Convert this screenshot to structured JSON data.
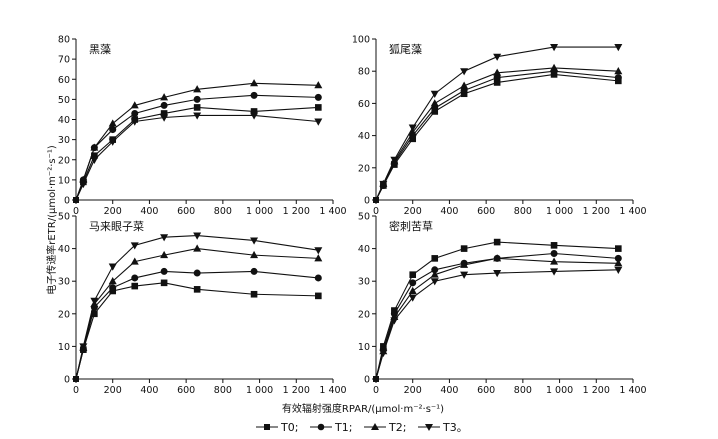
{
  "figure": {
    "y_axis_label": "电子传递率rETR/(μmol·m⁻²·s⁻¹)",
    "x_axis_label": "有效辐射强度RPAR/(μmol·m⁻²·s⁻¹)"
  },
  "legend": [
    {
      "label": "T0;",
      "marker": "square"
    },
    {
      "label": "T1;",
      "marker": "circle"
    },
    {
      "label": "T2;",
      "marker": "triangle-up"
    },
    {
      "label": "T3。",
      "marker": "triangle-down"
    }
  ],
  "chart_data": [
    {
      "type": "line",
      "title": "黑藻",
      "x": [
        0,
        40,
        100,
        200,
        320,
        480,
        660,
        970,
        1320
      ],
      "xlim": [
        0,
        1400
      ],
      "xticks": [
        "0",
        "200",
        "400",
        "600",
        "800",
        "1 000",
        "1 200",
        "1 400"
      ],
      "ylim": [
        0,
        80
      ],
      "yticks": [
        "0",
        "10",
        "20",
        "30",
        "40",
        "50",
        "60",
        "70",
        "80"
      ],
      "series": [
        {
          "name": "T0",
          "values": [
            0,
            9,
            22,
            30,
            40,
            43,
            46,
            44,
            46
          ]
        },
        {
          "name": "T1",
          "values": [
            0,
            10,
            26,
            35,
            43,
            47,
            50,
            52,
            51
          ]
        },
        {
          "name": "T2",
          "values": [
            0,
            10,
            26,
            38,
            47,
            51,
            55,
            58,
            57
          ]
        },
        {
          "name": "T3",
          "values": [
            0,
            8,
            20,
            29,
            39,
            41,
            42,
            42,
            39
          ]
        }
      ]
    },
    {
      "type": "line",
      "title": "狐尾藻",
      "x": [
        0,
        40,
        100,
        200,
        320,
        480,
        660,
        970,
        1320
      ],
      "xlim": [
        0,
        1400
      ],
      "xticks": [
        "0",
        "200",
        "400",
        "600",
        "800",
        "1 000",
        "1 200",
        "1 400"
      ],
      "ylim": [
        0,
        100
      ],
      "yticks": [
        "0",
        "20",
        "40",
        "60",
        "80",
        "100"
      ],
      "series": [
        {
          "name": "T0",
          "values": [
            0,
            9,
            22,
            38,
            55,
            66,
            73,
            78,
            74
          ]
        },
        {
          "name": "T1",
          "values": [
            0,
            9,
            23,
            40,
            57,
            68,
            76,
            80,
            76
          ]
        },
        {
          "name": "T2",
          "values": [
            0,
            10,
            24,
            42,
            60,
            71,
            79,
            82,
            80
          ]
        },
        {
          "name": "T3",
          "values": [
            0,
            10,
            25,
            45,
            66,
            80,
            89,
            95,
            95
          ]
        }
      ]
    },
    {
      "type": "line",
      "title": "马来眼子菜",
      "x": [
        0,
        40,
        100,
        200,
        320,
        480,
        660,
        970,
        1320
      ],
      "xlim": [
        0,
        1400
      ],
      "xticks": [
        "0",
        "200",
        "400",
        "600",
        "800",
        "1 000",
        "1 200",
        "1 400"
      ],
      "ylim": [
        0,
        50
      ],
      "yticks": [
        "0",
        "10",
        "20",
        "30",
        "40",
        "50"
      ],
      "series": [
        {
          "name": "T0",
          "values": [
            0,
            9,
            20,
            27,
            28.5,
            29.5,
            27.5,
            26,
            25.5
          ]
        },
        {
          "name": "T1",
          "values": [
            0,
            9,
            22,
            28,
            31,
            33,
            32.5,
            33,
            31
          ]
        },
        {
          "name": "T2",
          "values": [
            0,
            9.5,
            23,
            30,
            36,
            38,
            40,
            38,
            37
          ]
        },
        {
          "name": "T3",
          "values": [
            0,
            10,
            24,
            34.5,
            41,
            43.5,
            44,
            42.5,
            39.5
          ]
        }
      ]
    },
    {
      "type": "line",
      "title": "密刺苦草",
      "x": [
        0,
        40,
        100,
        200,
        320,
        480,
        660,
        970,
        1320
      ],
      "xlim": [
        0,
        1400
      ],
      "xticks": [
        "0",
        "200",
        "400",
        "600",
        "800",
        "1 000",
        "1 200",
        "1 400"
      ],
      "ylim": [
        0,
        50
      ],
      "yticks": [
        "0",
        "10",
        "20",
        "30",
        "40",
        "50"
      ],
      "series": [
        {
          "name": "T0",
          "values": [
            0,
            10,
            21,
            32,
            37,
            40,
            42,
            41,
            40
          ]
        },
        {
          "name": "T1",
          "values": [
            0,
            9,
            20,
            29.5,
            33.5,
            35.5,
            37,
            38.5,
            37
          ]
        },
        {
          "name": "T2",
          "values": [
            0,
            8.5,
            19,
            27,
            32,
            35,
            37,
            36,
            35.5
          ]
        },
        {
          "name": "T3",
          "values": [
            0,
            8,
            18,
            25,
            30,
            32,
            32.5,
            33,
            33.5
          ]
        }
      ]
    }
  ]
}
